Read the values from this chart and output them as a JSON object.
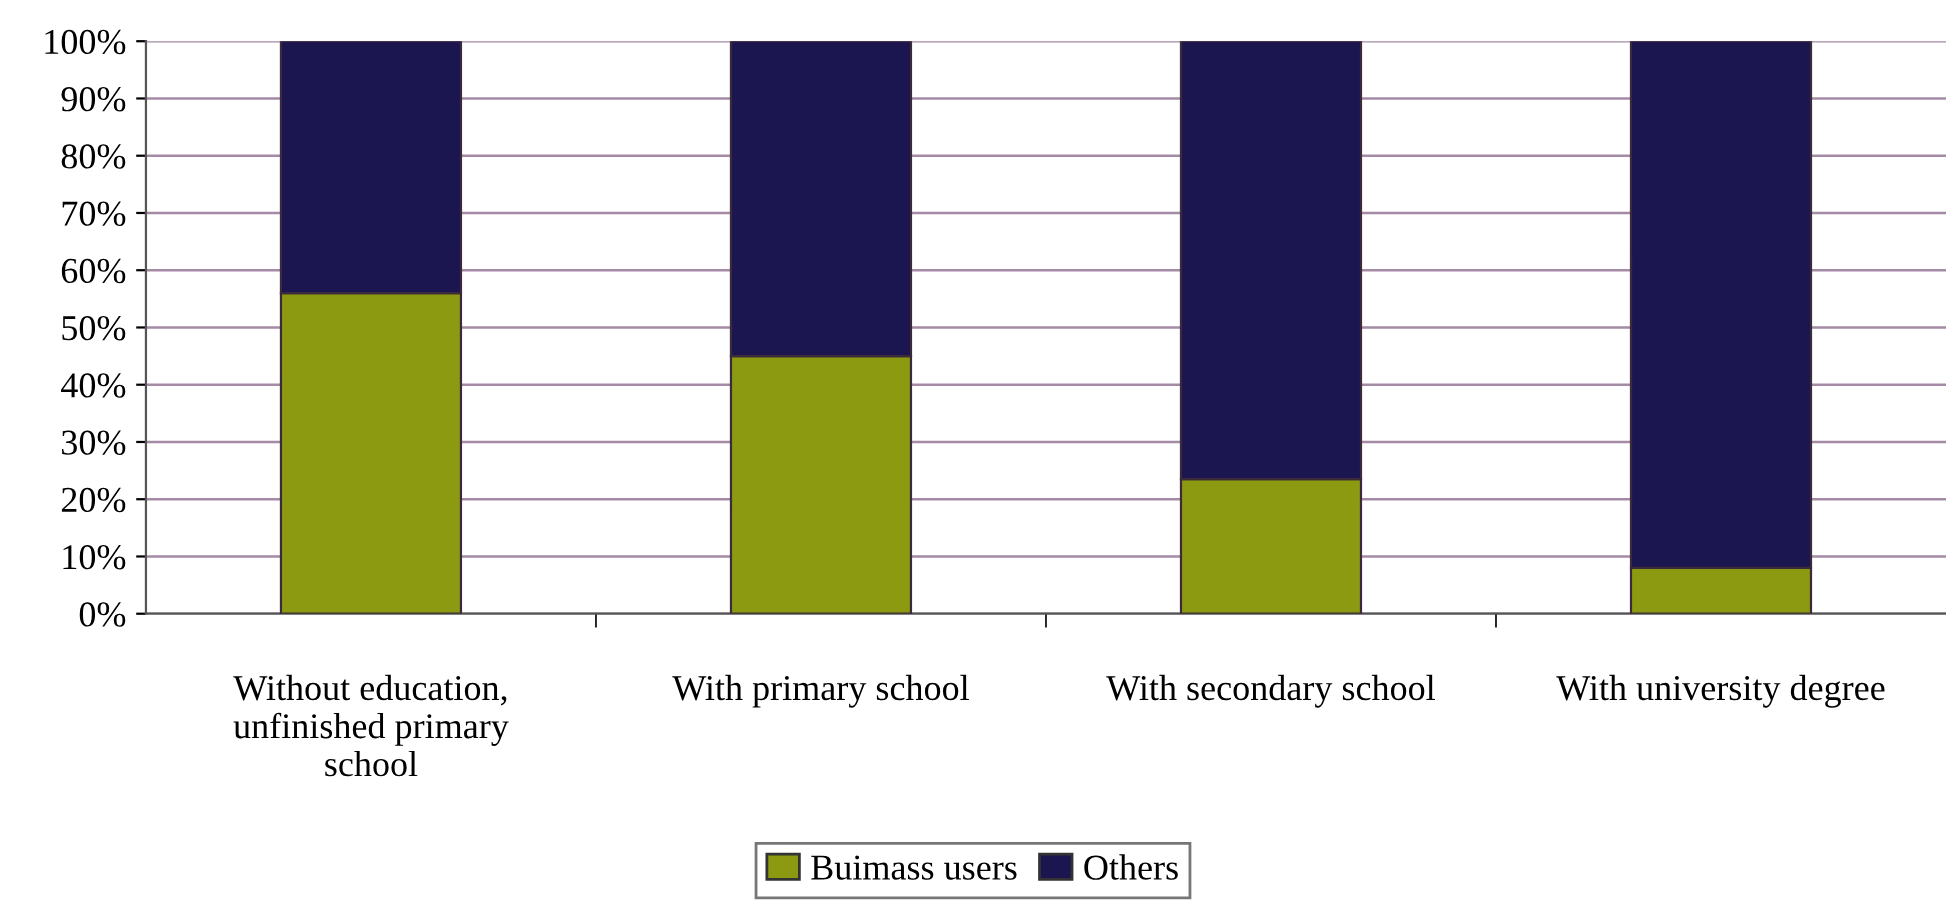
{
  "chart_data": {
    "type": "bar",
    "stacked": true,
    "categories": [
      "Without education,\nunfinished primary\nschool",
      "With primary school",
      "With secondary school",
      "With university degree"
    ],
    "series": [
      {
        "name": "Buimass users",
        "color": "#8c9a12",
        "values": [
          56,
          45,
          23.5,
          8
        ]
      },
      {
        "name": "Others",
        "color": "#1c1650",
        "values": [
          44,
          55,
          76.5,
          92
        ]
      }
    ],
    "ylim": [
      0,
      100
    ],
    "yticks": [
      {
        "value": 0,
        "label": "0%"
      },
      {
        "value": 10,
        "label": "10%"
      },
      {
        "value": 20,
        "label": "20%"
      },
      {
        "value": 30,
        "label": "30%"
      },
      {
        "value": 40,
        "label": "40%"
      },
      {
        "value": 50,
        "label": "50%"
      },
      {
        "value": 60,
        "label": "60%"
      },
      {
        "value": 70,
        "label": "70%"
      },
      {
        "value": 80,
        "label": "80%"
      },
      {
        "value": 90,
        "label": "90%"
      },
      {
        "value": 100,
        "label": "100%"
      }
    ],
    "grid": "y",
    "legend": "bottom"
  }
}
